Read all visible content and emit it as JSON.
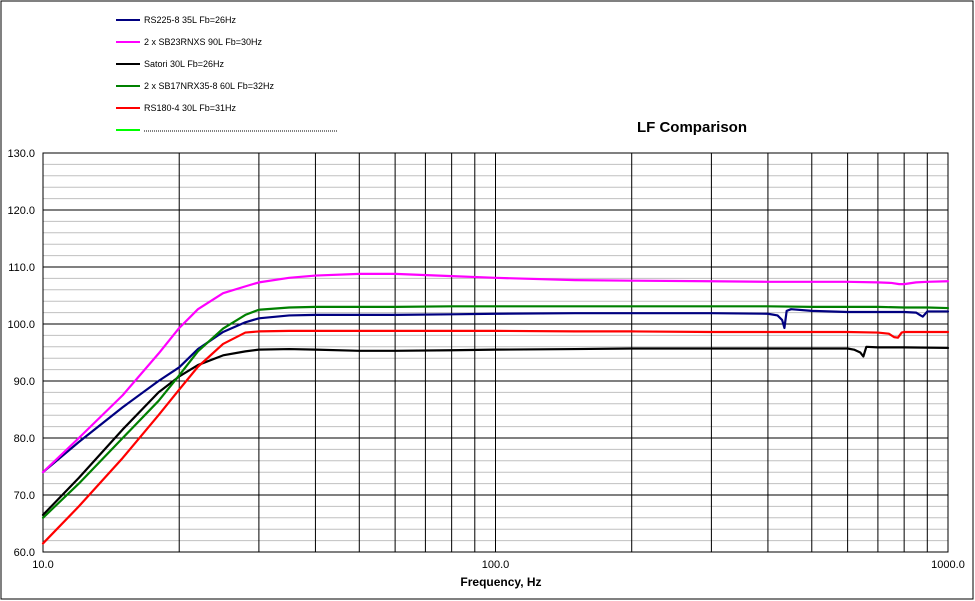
{
  "chart_data": {
    "type": "line",
    "title": "LF Comparison",
    "xlabel": "Frequency, Hz",
    "ylabel": "",
    "x_scale": "log",
    "xlim": [
      10.0,
      1000.0
    ],
    "ylim": [
      60.0,
      130.0
    ],
    "grid": true,
    "legend_position": "top-left",
    "x_ticks": [
      {
        "value": 10,
        "label": "10.0"
      },
      {
        "value": 100,
        "label": "100.0"
      },
      {
        "value": 1000,
        "label": "1000.0"
      }
    ],
    "y_ticks": [
      {
        "value": 60,
        "label": "60.0"
      },
      {
        "value": 70,
        "label": "70.0"
      },
      {
        "value": 80,
        "label": "80.0"
      },
      {
        "value": 90,
        "label": "90.0"
      },
      {
        "value": 100,
        "label": "100.0"
      },
      {
        "value": 110,
        "label": "110.0"
      },
      {
        "value": 120,
        "label": "120.0"
      },
      {
        "value": 130,
        "label": "130.0"
      }
    ],
    "series": [
      {
        "name": "RS225-8 35L Fb=26Hz",
        "color": "#000080",
        "x": [
          10,
          12,
          15,
          18,
          20,
          22,
          25,
          28,
          30,
          35,
          40,
          50,
          60,
          80,
          100,
          150,
          200,
          300,
          400,
          420,
          430,
          435,
          440,
          450,
          500,
          600,
          700,
          800,
          850,
          870,
          880,
          900,
          1000
        ],
        "y": [
          74.0,
          79.3,
          85.4,
          90.0,
          92.4,
          95.6,
          98.6,
          100.3,
          101.0,
          101.5,
          101.6,
          101.6,
          101.6,
          101.7,
          101.8,
          101.9,
          101.9,
          101.9,
          101.8,
          101.5,
          100.7,
          99.3,
          102.3,
          102.6,
          102.3,
          102.1,
          102.1,
          102.1,
          102.0,
          101.5,
          101.3,
          102.2,
          102.2
        ]
      },
      {
        "name": "2 x SB23RNXS 90L Fb=30Hz",
        "color": "#ff00ff",
        "x": [
          10,
          12,
          15,
          18,
          20,
          22,
          25,
          28,
          30,
          35,
          40,
          50,
          55,
          60,
          80,
          100,
          150,
          200,
          300,
          400,
          500,
          600,
          700,
          750,
          780,
          800,
          850,
          900,
          1000
        ],
        "y": [
          74.0,
          80.0,
          87.5,
          94.8,
          99.3,
          102.6,
          105.4,
          106.6,
          107.3,
          108.1,
          108.5,
          108.8,
          108.8,
          108.8,
          108.4,
          108.1,
          107.7,
          107.6,
          107.5,
          107.4,
          107.4,
          107.4,
          107.3,
          107.2,
          107.0,
          107.0,
          107.3,
          107.4,
          107.5
        ]
      },
      {
        "name": "Satori 30L Fb=26Hz",
        "color": "#000000",
        "x": [
          10,
          12,
          15,
          18,
          20,
          22,
          25,
          28,
          30,
          35,
          40,
          50,
          60,
          80,
          100,
          150,
          200,
          300,
          400,
          500,
          600,
          620,
          640,
          650,
          660,
          700,
          800,
          1000
        ],
        "y": [
          66.5,
          73.0,
          81.5,
          88.0,
          90.8,
          92.8,
          94.5,
          95.2,
          95.5,
          95.6,
          95.5,
          95.3,
          95.3,
          95.4,
          95.5,
          95.6,
          95.7,
          95.7,
          95.7,
          95.7,
          95.7,
          95.5,
          95.0,
          94.3,
          96.0,
          95.9,
          95.9,
          95.8
        ]
      },
      {
        "name": "2 x SB17NRX35-8  60L Fb=32Hz",
        "color": "#008000",
        "x": [
          10,
          12,
          15,
          18,
          20,
          22,
          25,
          28,
          30,
          35,
          40,
          50,
          60,
          80,
          100,
          150,
          200,
          300,
          400,
          500,
          600,
          700,
          800,
          900,
          1000
        ],
        "y": [
          66.0,
          72.0,
          80.0,
          86.5,
          91.0,
          95.2,
          99.2,
          101.6,
          102.5,
          102.9,
          103.0,
          103.0,
          103.0,
          103.1,
          103.1,
          103.1,
          103.1,
          103.1,
          103.1,
          103.0,
          103.0,
          103.0,
          102.9,
          102.9,
          102.8
        ]
      },
      {
        "name": "RS180-4 30L Fb=31Hz",
        "color": "#ff0000",
        "x": [
          10,
          12,
          15,
          18,
          20,
          22,
          25,
          28,
          30,
          35,
          40,
          50,
          60,
          80,
          100,
          150,
          200,
          300,
          400,
          500,
          600,
          700,
          740,
          760,
          775,
          790,
          800,
          1000
        ],
        "y": [
          61.5,
          68.0,
          76.5,
          84.0,
          88.5,
          92.5,
          96.5,
          98.5,
          98.7,
          98.8,
          98.8,
          98.8,
          98.8,
          98.8,
          98.8,
          98.7,
          98.7,
          98.6,
          98.6,
          98.6,
          98.6,
          98.5,
          98.3,
          97.7,
          97.6,
          98.5,
          98.6,
          98.6
        ]
      }
    ],
    "legend": [
      {
        "label": "RS225-8 35L Fb=26Hz",
        "color": "#000080"
      },
      {
        "label": "2 x SB23RNXS 90L Fb=30Hz",
        "color": "#ff00ff"
      },
      {
        "label": "Satori 30L Fb=26Hz",
        "color": "#000000"
      },
      {
        "label": "2 x SB17NRX35-8  60L Fb=32Hz",
        "color": "#008000"
      },
      {
        "label": "RS180-4 30L Fb=31Hz",
        "color": "#ff0000"
      },
      {
        "label": "",
        "color": "#00ff00"
      }
    ]
  }
}
